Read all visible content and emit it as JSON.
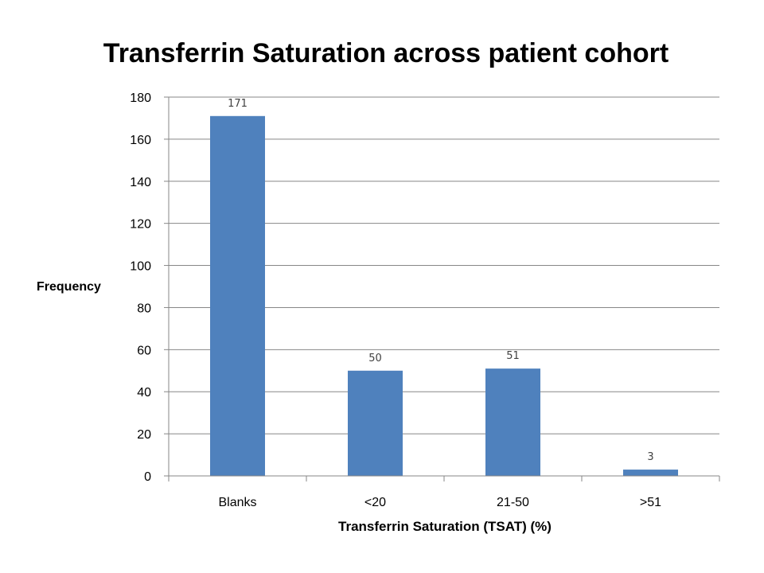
{
  "chart_data": {
    "type": "bar",
    "title": "Transferrin Saturation across patient cohort",
    "xlabel": "Transferrin Saturation (TSAT) (%)",
    "ylabel": "Frequency",
    "categories": [
      "Blanks",
      "<20",
      "21-50",
      ">51"
    ],
    "values": [
      171,
      50,
      51,
      3
    ],
    "data_labels": [
      "171",
      "50",
      "51",
      "3"
    ],
    "ylim": [
      0,
      180
    ],
    "yticks": [
      0,
      20,
      40,
      60,
      80,
      100,
      120,
      140,
      160,
      180
    ],
    "grid": true,
    "legend": "none",
    "bar_color": "#4f81bd"
  }
}
